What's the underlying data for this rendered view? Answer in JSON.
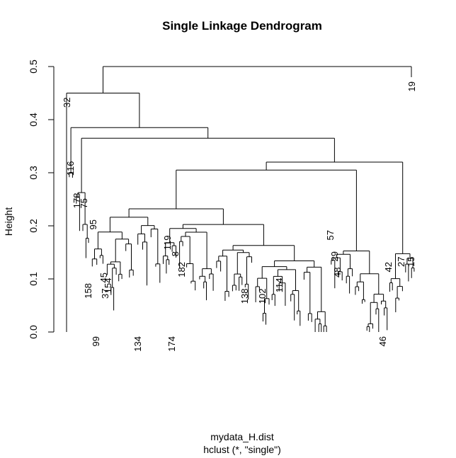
{
  "chart_data": {
    "type": "dendrogram",
    "title": "Single Linkage Dendrogram",
    "xlabel": "mydata_H.dist",
    "sublabel": "hclust (*, \"single\")",
    "ylabel": "Height",
    "ylim": [
      0,
      0.5
    ],
    "yticks": [
      0.0,
      0.1,
      0.2,
      0.3,
      0.4,
      0.5
    ],
    "ytick_labels": [
      "0.0",
      "0.1",
      "0.2",
      "0.3",
      "0.4",
      "0.5"
    ],
    "root_height": 0.5,
    "labeled_leaves": [
      {
        "label": "32",
        "height": 0.45
      },
      {
        "label": "19",
        "height": 0.48
      },
      {
        "label": "116",
        "height": 0.33
      },
      {
        "label": "178",
        "height": 0.27
      },
      {
        "label": "75",
        "height": 0.26
      },
      {
        "label": "95",
        "height": 0.22
      },
      {
        "label": "119",
        "height": 0.19
      },
      {
        "label": "57",
        "height": 0.2
      },
      {
        "label": "29",
        "height": 0.16
      },
      {
        "label": "48",
        "height": 0.13
      },
      {
        "label": "42",
        "height": 0.14
      },
      {
        "label": "15",
        "height": 0.15
      },
      {
        "label": "27",
        "height": 0.15
      },
      {
        "label": "8",
        "height": 0.16
      },
      {
        "label": "182",
        "height": 0.14
      },
      {
        "label": "114",
        "height": 0.11
      },
      {
        "label": "138",
        "height": 0.09
      },
      {
        "label": "102",
        "height": 0.09
      },
      {
        "label": "158",
        "height": 0.1
      },
      {
        "label": "45",
        "height": 0.12
      },
      {
        "label": "37",
        "height": 0.09
      },
      {
        "label": "154",
        "height": 0.11
      },
      {
        "label": "134",
        "height": 0.0
      },
      {
        "label": "174",
        "height": 0.0
      },
      {
        "label": "99",
        "height": 0.0
      },
      {
        "label": "46",
        "height": 0.0
      }
    ]
  }
}
